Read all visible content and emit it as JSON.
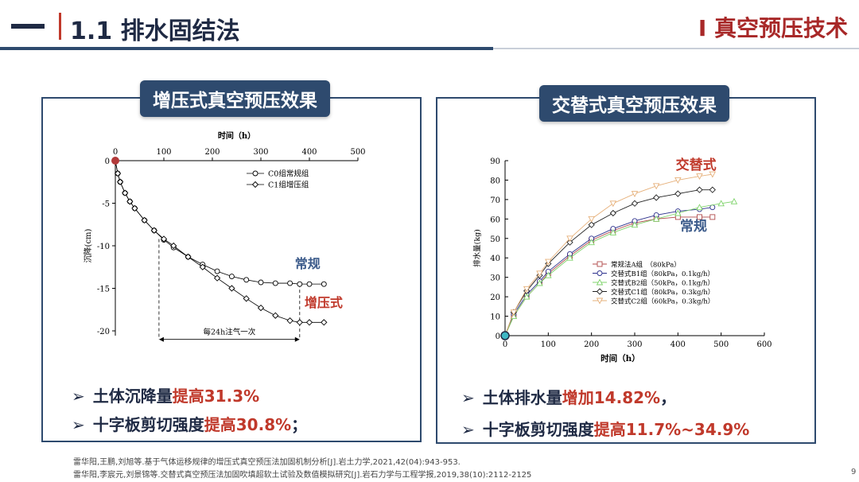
{
  "header": {
    "dash": "—",
    "section_title": "1.1 排水固结法",
    "chapter_title": "I  真空预压技术"
  },
  "left_panel": {
    "title": "增压式真空预压效果",
    "bullets": [
      {
        "prefix": "土体沉降量",
        "emph": "提高31.3%",
        "suffix": ""
      },
      {
        "prefix": "十字板剪切强度",
        "emph": "提高30.8%",
        "suffix": "；"
      }
    ]
  },
  "right_panel": {
    "title": "交替式真空预压效果",
    "bullets": [
      {
        "prefix": "土体排水量",
        "emph": "增加14.82%",
        "suffix": "，"
      },
      {
        "prefix": "十字板剪切强度",
        "emph": "提高11.7%~34.9%",
        "suffix": ""
      }
    ]
  },
  "references": [
    "雷华阳,王鹏,刘旭等.基于气体运移规律的增压式真空预压法加固机制分析[J].岩土力学,2021,42(04):943-953.",
    "雷华阳,李宸元,刘景锦等.交替式真空预压法加固吹填超软土试验及数值模拟研究[J].岩石力学与工程学报,2019,38(10):2112-2125"
  ],
  "page_number": "9",
  "chart_data": [
    {
      "type": "line",
      "xlabel": "时间（h）",
      "ylabel": "沉降(cm)",
      "xlim": [
        0,
        500
      ],
      "ylim": [
        -20,
        0
      ],
      "x_ticks": [
        "0",
        "100",
        "200",
        "300",
        "400",
        "500"
      ],
      "y_ticks": [
        "0",
        "-5",
        "-10",
        "-15",
        "-20"
      ],
      "x_axis_position": "top",
      "legend_position": "top-right",
      "series": [
        {
          "name": "C0组常规组",
          "marker": "open-circle",
          "x": [
            0,
            5,
            10,
            20,
            30,
            40,
            60,
            80,
            100,
            120,
            150,
            180,
            210,
            240,
            270,
            300,
            330,
            360,
            380,
            400,
            430
          ],
          "y": [
            0,
            -1.5,
            -2.5,
            -3.8,
            -4.8,
            -5.6,
            -7.0,
            -8.2,
            -9.3,
            -10.2,
            -11.3,
            -12.2,
            -13.0,
            -13.6,
            -14.0,
            -14.3,
            -14.4,
            -14.4,
            -14.5,
            -14.5,
            -14.5
          ]
        },
        {
          "name": "C1组增压组",
          "marker": "open-diamond",
          "x": [
            0,
            5,
            10,
            20,
            30,
            40,
            60,
            80,
            100,
            120,
            150,
            180,
            210,
            240,
            270,
            300,
            330,
            360,
            380,
            400,
            430
          ],
          "y": [
            0,
            -1.5,
            -2.5,
            -3.8,
            -4.8,
            -5.6,
            -7.0,
            -8.2,
            -9.2,
            -10.0,
            -11.3,
            -12.5,
            -13.8,
            -15.0,
            -16.2,
            -17.3,
            -18.2,
            -18.8,
            -19.0,
            -19.0,
            -19.0
          ]
        }
      ],
      "annotations": [
        {
          "text": "常规",
          "color": "#3b5a8a"
        },
        {
          "text": "增压式",
          "color": "#c0392b"
        },
        {
          "text": "每24h注气一次",
          "x_from": 90,
          "x_to": 380
        }
      ]
    },
    {
      "type": "line",
      "xlabel": "时间（h）",
      "ylabel": "排水量(kg)",
      "xlim": [
        0,
        600
      ],
      "ylim": [
        0,
        90
      ],
      "x_ticks": [
        "0",
        "100",
        "200",
        "300",
        "400",
        "500",
        "600"
      ],
      "y_ticks": [
        "0",
        "10",
        "20",
        "30",
        "40",
        "50",
        "60",
        "70",
        "80",
        "90"
      ],
      "legend_position": "bottom-right",
      "series": [
        {
          "name": "常规法A组　（80kPa）",
          "color": "#b04a4a",
          "marker": "open-square",
          "x": [
            0,
            20,
            50,
            80,
            100,
            150,
            200,
            250,
            300,
            350,
            400,
            450,
            480
          ],
          "y": [
            0,
            10,
            20,
            27,
            32,
            41,
            49,
            54,
            58,
            60,
            61,
            61,
            61
          ]
        },
        {
          "name": "交替式B1组（80kPa，0.1kg/h）",
          "color": "#2b2f8c",
          "marker": "open-circle",
          "x": [
            0,
            20,
            50,
            80,
            100,
            150,
            200,
            250,
            300,
            350,
            400,
            450,
            480
          ],
          "y": [
            0,
            11,
            21,
            28,
            33,
            42,
            50,
            55,
            59,
            62,
            64,
            65,
            66
          ]
        },
        {
          "name": "交替式B2组（50kPa，0.1kg/h）",
          "color": "#7fd36b",
          "marker": "open-triangle",
          "x": [
            0,
            20,
            50,
            80,
            100,
            150,
            200,
            250,
            300,
            350,
            400,
            450,
            500,
            530
          ],
          "y": [
            0,
            10,
            20,
            27,
            31,
            40,
            48,
            53,
            57,
            60,
            63,
            66,
            68,
            69
          ]
        },
        {
          "name": "交替式C1组（80kPa，0.3kg/h）",
          "color": "#222222",
          "marker": "open-diamond",
          "x": [
            0,
            20,
            50,
            80,
            100,
            150,
            200,
            250,
            300,
            350,
            400,
            450,
            480
          ],
          "y": [
            0,
            12,
            23,
            31,
            37,
            48,
            57,
            63,
            68,
            71,
            73,
            75,
            75
          ]
        },
        {
          "name": "交替式C2组（60kPa，0.3kg/h）",
          "color": "#e6b07a",
          "marker": "open-triangle-down",
          "x": [
            0,
            20,
            50,
            80,
            100,
            150,
            200,
            250,
            300,
            350,
            400,
            450,
            480
          ],
          "y": [
            0,
            12,
            24,
            32,
            38,
            50,
            60,
            68,
            73,
            77,
            80,
            82,
            83
          ]
        }
      ],
      "annotations": [
        {
          "text": "交替式",
          "color": "#c0392b"
        },
        {
          "text": "常规",
          "color": "#3b5a8a"
        }
      ]
    }
  ]
}
